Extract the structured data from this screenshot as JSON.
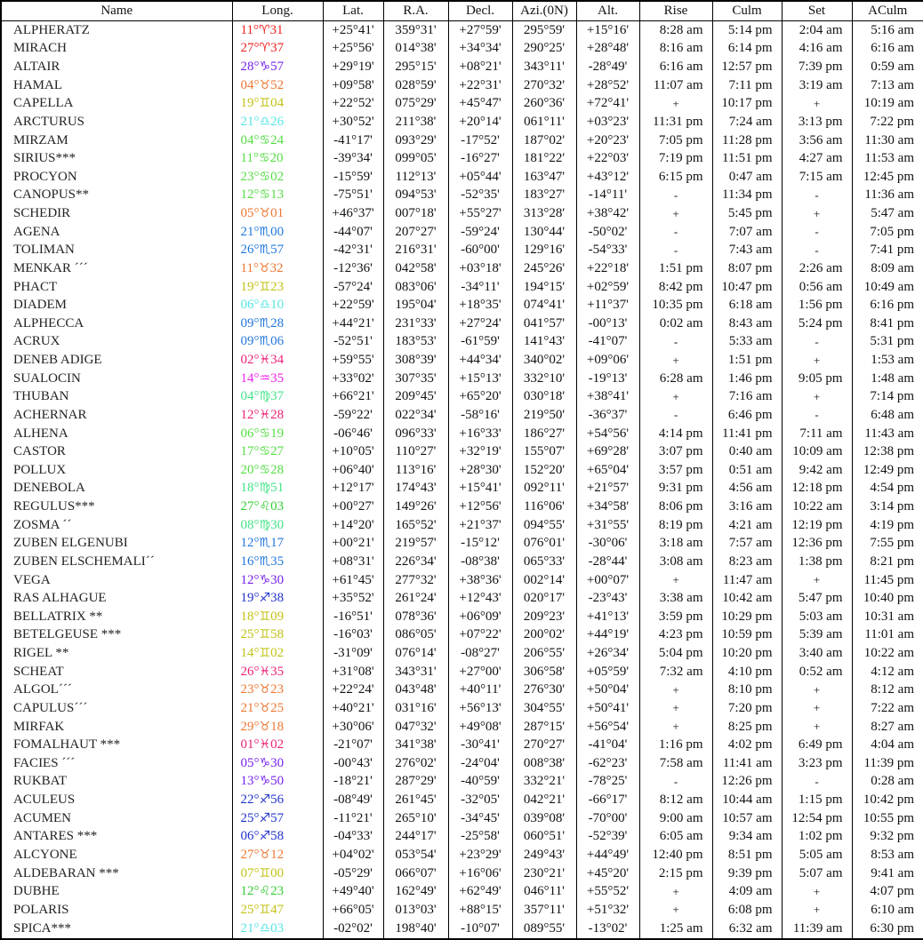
{
  "table": {
    "columns": [
      {
        "key": "name",
        "label": "Name"
      },
      {
        "key": "long",
        "label": "Long."
      },
      {
        "key": "lat",
        "label": "Lat."
      },
      {
        "key": "ra",
        "label": "R.A."
      },
      {
        "key": "decl",
        "label": "Decl."
      },
      {
        "key": "azi",
        "label": "Azi.(0N)"
      },
      {
        "key": "alt",
        "label": "Alt."
      },
      {
        "key": "rise",
        "label": "Rise"
      },
      {
        "key": "culm",
        "label": "Culm"
      },
      {
        "key": "set",
        "label": "Set"
      },
      {
        "key": "aculm",
        "label": "ACulm"
      }
    ],
    "circumpolar_above_mark": "+",
    "circumpolar_below_mark": "-",
    "rows": [
      {
        "name": "ALPHERATZ",
        "long": "11°♈31",
        "lat": "+25°41'",
        "ra": "359°31'",
        "decl": "+27°59'",
        "azi": "295°59'",
        "alt": "+15°16'",
        "rise": "8:28 am",
        "culm": "5:14 pm",
        "set": "2:04 am",
        "aculm": "5:16 am"
      },
      {
        "name": "MIRACH",
        "long": "27°♈37",
        "lat": "+25°56'",
        "ra": "014°38'",
        "decl": "+34°34'",
        "azi": "290°25'",
        "alt": "+28°48'",
        "rise": "8:16 am",
        "culm": "6:14 pm",
        "set": "4:16 am",
        "aculm": "6:16 am"
      },
      {
        "name": "ALTAIR",
        "long": "28°♑57",
        "lat": "+29°19'",
        "ra": "295°15'",
        "decl": "+08°21'",
        "azi": "343°11'",
        "alt": "-28°49'",
        "rise": "6:16 am",
        "culm": "12:57 pm",
        "set": "7:39 pm",
        "aculm": "0:59 am"
      },
      {
        "name": "HAMAL",
        "long": "04°♉52",
        "lat": "+09°58'",
        "ra": "028°59'",
        "decl": "+22°31'",
        "azi": "270°32'",
        "alt": "+28°52'",
        "rise": "11:07 am",
        "culm": "7:11 pm",
        "set": "3:19 am",
        "aculm": "7:13 am"
      },
      {
        "name": "CAPELLA",
        "long": "19°♊04",
        "lat": "+22°52'",
        "ra": "075°29'",
        "decl": "+45°47'",
        "azi": "260°36'",
        "alt": "+72°41'",
        "rise": "+",
        "culm": "10:17 pm",
        "set": "+",
        "aculm": "10:19 am"
      },
      {
        "name": "ARCTURUS",
        "long": "21°♎26",
        "lat": "+30°52'",
        "ra": "211°38'",
        "decl": "+20°14'",
        "azi": "061°11'",
        "alt": "+03°23'",
        "rise": "11:31 pm",
        "culm": "7:24 am",
        "set": "3:13 pm",
        "aculm": "7:22 pm"
      },
      {
        "name": "MIRZAM",
        "long": "04°♋24",
        "lat": "-41°17'",
        "ra": "093°29'",
        "decl": "-17°52'",
        "azi": "187°02'",
        "alt": "+20°23'",
        "rise": "7:05 pm",
        "culm": "11:28 pm",
        "set": "3:56 am",
        "aculm": "11:30 am"
      },
      {
        "name": "SIRIUS***",
        "long": "11°♋20",
        "lat": "-39°34'",
        "ra": "099°05'",
        "decl": "-16°27'",
        "azi": "181°22'",
        "alt": "+22°03'",
        "rise": "7:19 pm",
        "culm": "11:51 pm",
        "set": "4:27 am",
        "aculm": "11:53 am"
      },
      {
        "name": "PROCYON",
        "long": "23°♋02",
        "lat": "-15°59'",
        "ra": "112°13'",
        "decl": "+05°44'",
        "azi": "163°47'",
        "alt": "+43°12'",
        "rise": "6:15 pm",
        "culm": "0:47 am",
        "set": "7:15 am",
        "aculm": "12:45 pm"
      },
      {
        "name": "CANOPUS**",
        "long": "12°♋13",
        "lat": "-75°51'",
        "ra": "094°53'",
        "decl": "-52°35'",
        "azi": "183°27'",
        "alt": "-14°11'",
        "rise": "-",
        "culm": "11:34 pm",
        "set": "-",
        "aculm": "11:36 am"
      },
      {
        "name": "SCHEDIR",
        "long": "05°♉01",
        "lat": "+46°37'",
        "ra": "007°18'",
        "decl": "+55°27'",
        "azi": "313°28'",
        "alt": "+38°42'",
        "rise": "+",
        "culm": "5:45 pm",
        "set": "+",
        "aculm": "5:47 am"
      },
      {
        "name": "AGENA",
        "long": "21°♏00",
        "lat": "-44°07'",
        "ra": "207°27'",
        "decl": "-59°24'",
        "azi": "130°44'",
        "alt": "-50°02'",
        "rise": "-",
        "culm": "7:07 am",
        "set": "-",
        "aculm": "7:05 pm"
      },
      {
        "name": "TOLIMAN",
        "long": "26°♏57",
        "lat": "-42°31'",
        "ra": "216°31'",
        "decl": "-60°00'",
        "azi": "129°16'",
        "alt": "-54°33'",
        "rise": "-",
        "culm": "7:43 am",
        "set": "-",
        "aculm": "7:41 pm"
      },
      {
        "name": "MENKAR ´´´",
        "long": "11°♉32",
        "lat": "-12°36'",
        "ra": "042°58'",
        "decl": "+03°18'",
        "azi": "245°26'",
        "alt": "+22°18'",
        "rise": "1:51 pm",
        "culm": "8:07 pm",
        "set": "2:26 am",
        "aculm": "8:09 am"
      },
      {
        "name": "PHACT",
        "long": "19°♊23",
        "lat": "-57°24'",
        "ra": "083°06'",
        "decl": "-34°11'",
        "azi": "194°15'",
        "alt": "+02°59'",
        "rise": "8:42 pm",
        "culm": "10:47 pm",
        "set": "0:56 am",
        "aculm": "10:49 am"
      },
      {
        "name": "DIADEM",
        "long": "06°♎10",
        "lat": "+22°59'",
        "ra": "195°04'",
        "decl": "+18°35'",
        "azi": "074°41'",
        "alt": "+11°37'",
        "rise": "10:35 pm",
        "culm": "6:18 am",
        "set": "1:56 pm",
        "aculm": "6:16 pm"
      },
      {
        "name": "ALPHECCA",
        "long": "09°♏28",
        "lat": "+44°21'",
        "ra": "231°33'",
        "decl": "+27°24'",
        "azi": "041°57'",
        "alt": "-00°13'",
        "rise": "0:02 am",
        "culm": "8:43 am",
        "set": "5:24 pm",
        "aculm": "8:41 pm"
      },
      {
        "name": "ACRUX",
        "long": "09°♏06",
        "lat": "-52°51'",
        "ra": "183°53'",
        "decl": "-61°59'",
        "azi": "141°43'",
        "alt": "-41°07'",
        "rise": "-",
        "culm": "5:33 am",
        "set": "-",
        "aculm": "5:31 pm"
      },
      {
        "name": "DENEB ADIGE",
        "long": "02°♓34",
        "lat": "+59°55'",
        "ra": "308°39'",
        "decl": "+44°34'",
        "azi": "340°02'",
        "alt": "+09°06'",
        "rise": "+",
        "culm": "1:51 pm",
        "set": "+",
        "aculm": "1:53 am"
      },
      {
        "name": "SUALOCIN",
        "long": "14°♒35",
        "lat": "+33°02'",
        "ra": "307°35'",
        "decl": "+15°13'",
        "azi": "332°10'",
        "alt": "-19°13'",
        "rise": "6:28 am",
        "culm": "1:46 pm",
        "set": "9:05 pm",
        "aculm": "1:48 am"
      },
      {
        "name": "THUBAN",
        "long": "04°♍37",
        "lat": "+66°21'",
        "ra": "209°45'",
        "decl": "+65°20'",
        "azi": "030°18'",
        "alt": "+38°41'",
        "rise": "+",
        "culm": "7:16 am",
        "set": "+",
        "aculm": "7:14 pm"
      },
      {
        "name": "ACHERNAR",
        "long": "12°♓28",
        "lat": "-59°22'",
        "ra": "022°34'",
        "decl": "-58°16'",
        "azi": "219°50'",
        "alt": "-36°37'",
        "rise": "-",
        "culm": "6:46 pm",
        "set": "-",
        "aculm": "6:48 am"
      },
      {
        "name": "ALHENA",
        "long": "06°♋19",
        "lat": "-06°46'",
        "ra": "096°33'",
        "decl": "+16°33'",
        "azi": "186°27'",
        "alt": "+54°56'",
        "rise": "4:14 pm",
        "culm": "11:41 pm",
        "set": "7:11 am",
        "aculm": "11:43 am"
      },
      {
        "name": "CASTOR",
        "long": "17°♋27",
        "lat": "+10°05'",
        "ra": "110°27'",
        "decl": "+32°19'",
        "azi": "155°07'",
        "alt": "+69°28'",
        "rise": "3:07 pm",
        "culm": "0:40 am",
        "set": "10:09 am",
        "aculm": "12:38 pm"
      },
      {
        "name": "POLLUX",
        "long": "20°♋28",
        "lat": "+06°40'",
        "ra": "113°16'",
        "decl": "+28°30'",
        "azi": "152°20'",
        "alt": "+65°04'",
        "rise": "3:57 pm",
        "culm": "0:51 am",
        "set": "9:42 am",
        "aculm": "12:49 pm"
      },
      {
        "name": "DENEBOLA",
        "long": "18°♍51",
        "lat": "+12°17'",
        "ra": "174°43'",
        "decl": "+15°41'",
        "azi": "092°11'",
        "alt": "+21°57'",
        "rise": "9:31 pm",
        "culm": "4:56 am",
        "set": "12:18 pm",
        "aculm": "4:54 pm"
      },
      {
        "name": "REGULUS***",
        "long": "27°♌03",
        "lat": "+00°27'",
        "ra": "149°26'",
        "decl": "+12°56'",
        "azi": "116°06'",
        "alt": "+34°58'",
        "rise": "8:06 pm",
        "culm": "3:16 am",
        "set": "10:22 am",
        "aculm": "3:14 pm"
      },
      {
        "name": "ZOSMA ´´",
        "long": "08°♍30",
        "lat": "+14°20'",
        "ra": "165°52'",
        "decl": "+21°37'",
        "azi": "094°55'",
        "alt": "+31°55'",
        "rise": "8:19 pm",
        "culm": "4:21 am",
        "set": "12:19 pm",
        "aculm": "4:19 pm"
      },
      {
        "name": "ZUBEN ELGENUBI",
        "long": "12°♏17",
        "lat": "+00°21'",
        "ra": "219°57'",
        "decl": "-15°12'",
        "azi": "076°01'",
        "alt": "-30°06'",
        "rise": "3:18 am",
        "culm": "7:57 am",
        "set": "12:36 pm",
        "aculm": "7:55 pm"
      },
      {
        "name": "ZUBEN ELSCHEMALI´´",
        "long": "16°♏35",
        "lat": "+08°31'",
        "ra": "226°34'",
        "decl": "-08°38'",
        "azi": "065°33'",
        "alt": "-28°44'",
        "rise": "3:08 am",
        "culm": "8:23 am",
        "set": "1:38 pm",
        "aculm": "8:21 pm"
      },
      {
        "name": "VEGA",
        "long": "12°♑30",
        "lat": "+61°45'",
        "ra": "277°32'",
        "decl": "+38°36'",
        "azi": "002°14'",
        "alt": "+00°07'",
        "rise": "+",
        "culm": "11:47 am",
        "set": "+",
        "aculm": "11:45 pm"
      },
      {
        "name": "RAS ALHAGUE",
        "long": "19°♐38",
        "lat": "+35°52'",
        "ra": "261°24'",
        "decl": "+12°43'",
        "azi": "020°17'",
        "alt": "-23°43'",
        "rise": "3:38 am",
        "culm": "10:42 am",
        "set": "5:47 pm",
        "aculm": "10:40 pm"
      },
      {
        "name": "BELLATRIX **",
        "long": "18°♊09",
        "lat": "-16°51'",
        "ra": "078°36'",
        "decl": "+06°09'",
        "azi": "209°23'",
        "alt": "+41°13'",
        "rise": "3:59 pm",
        "culm": "10:29 pm",
        "set": "5:03 am",
        "aculm": "10:31 am"
      },
      {
        "name": "BETELGEUSE ***",
        "long": "25°♊58",
        "lat": "-16°03'",
        "ra": "086°05'",
        "decl": "+07°22'",
        "azi": "200°02'",
        "alt": "+44°19'",
        "rise": "4:23 pm",
        "culm": "10:59 pm",
        "set": "5:39 am",
        "aculm": "11:01 am"
      },
      {
        "name": "RIGEL **",
        "long": "14°♊02",
        "lat": "-31°09'",
        "ra": "076°14'",
        "decl": "-08°27'",
        "azi": "206°55'",
        "alt": "+26°34'",
        "rise": "5:04 pm",
        "culm": "10:20 pm",
        "set": "3:40 am",
        "aculm": "10:22 am"
      },
      {
        "name": "SCHEAT",
        "long": "26°♓35",
        "lat": "+31°08'",
        "ra": "343°31'",
        "decl": "+27°00'",
        "azi": "306°58'",
        "alt": "+05°59'",
        "rise": "7:32 am",
        "culm": "4:10 pm",
        "set": "0:52 am",
        "aculm": "4:12 am"
      },
      {
        "name": "ALGOL´´´",
        "long": "23°♉23",
        "lat": "+22°24'",
        "ra": "043°48'",
        "decl": "+40°11'",
        "azi": "276°30'",
        "alt": "+50°04'",
        "rise": "+",
        "culm": "8:10 pm",
        "set": "+",
        "aculm": "8:12 am"
      },
      {
        "name": "CAPULUS´´´",
        "long": "21°♉25",
        "lat": "+40°21'",
        "ra": "031°16'",
        "decl": "+56°13'",
        "azi": "304°55'",
        "alt": "+50°41'",
        "rise": "+",
        "culm": "7:20 pm",
        "set": "+",
        "aculm": "7:22 am"
      },
      {
        "name": "MIRFAK",
        "long": "29°♉18",
        "lat": "+30°06'",
        "ra": "047°32'",
        "decl": "+49°08'",
        "azi": "287°15'",
        "alt": "+56°54'",
        "rise": "+",
        "culm": "8:25 pm",
        "set": "+",
        "aculm": "8:27 am"
      },
      {
        "name": "FOMALHAUT ***",
        "long": "01°♓02",
        "lat": "-21°07'",
        "ra": "341°38'",
        "decl": "-30°41'",
        "azi": "270°27'",
        "alt": "-41°04'",
        "rise": "1:16 pm",
        "culm": "4:02 pm",
        "set": "6:49 pm",
        "aculm": "4:04 am"
      },
      {
        "name": "FACIES ´´´",
        "long": "05°♑30",
        "lat": "-00°43'",
        "ra": "276°02'",
        "decl": "-24°04'",
        "azi": "008°38'",
        "alt": "-62°23'",
        "rise": "7:58 am",
        "culm": "11:41 am",
        "set": "3:23 pm",
        "aculm": "11:39 pm"
      },
      {
        "name": "RUKBAT",
        "long": "13°♑50",
        "lat": "-18°21'",
        "ra": "287°29'",
        "decl": "-40°59'",
        "azi": "332°21'",
        "alt": "-78°25'",
        "rise": "-",
        "culm": "12:26 pm",
        "set": "-",
        "aculm": "0:28 am"
      },
      {
        "name": "ACULEUS",
        "long": "22°♐56",
        "lat": "-08°49'",
        "ra": "261°45'",
        "decl": "-32°05'",
        "azi": "042°21'",
        "alt": "-66°17'",
        "rise": "8:12 am",
        "culm": "10:44 am",
        "set": "1:15 pm",
        "aculm": "10:42 pm"
      },
      {
        "name": "ACUMEN",
        "long": "25°♐57",
        "lat": "-11°21'",
        "ra": "265°10'",
        "decl": "-34°45'",
        "azi": "039°08'",
        "alt": "-70°00'",
        "rise": "9:00 am",
        "culm": "10:57 am",
        "set": "12:54 pm",
        "aculm": "10:55 pm"
      },
      {
        "name": "ANTARES ***",
        "long": "06°♐58",
        "lat": "-04°33'",
        "ra": "244°17'",
        "decl": "-25°58'",
        "azi": "060°51'",
        "alt": "-52°39'",
        "rise": "6:05 am",
        "culm": "9:34 am",
        "set": "1:02 pm",
        "aculm": "9:32 pm"
      },
      {
        "name": "ALCYONE",
        "long": "27°♉12",
        "lat": "+04°02'",
        "ra": "053°54'",
        "decl": "+23°29'",
        "azi": "249°43'",
        "alt": "+44°49'",
        "rise": "12:40 pm",
        "culm": "8:51 pm",
        "set": "5:05 am",
        "aculm": "8:53 am"
      },
      {
        "name": "ALDEBARAN ***",
        "long": "07°♊00",
        "lat": "-05°29'",
        "ra": "066°07'",
        "decl": "+16°06'",
        "azi": "230°21'",
        "alt": "+45°20'",
        "rise": "2:15 pm",
        "culm": "9:39 pm",
        "set": "5:07 am",
        "aculm": "9:41 am"
      },
      {
        "name": "DUBHE",
        "long": "12°♌23",
        "lat": "+49°40'",
        "ra": "162°49'",
        "decl": "+62°49'",
        "azi": "046°11'",
        "alt": "+55°52'",
        "rise": "+",
        "culm": "4:09 am",
        "set": "+",
        "aculm": "4:07 pm"
      },
      {
        "name": "POLARIS",
        "long": "25°♊47",
        "lat": "+66°05'",
        "ra": "013°03'",
        "decl": "+88°15'",
        "azi": "357°11'",
        "alt": "+51°32'",
        "rise": "+",
        "culm": "6:08 pm",
        "set": "+",
        "aculm": "6:10 am"
      },
      {
        "name": "SPICA***",
        "long": "21°♎03",
        "lat": "-02°02'",
        "ra": "198°40'",
        "decl": "-10°07'",
        "azi": "089°55'",
        "alt": "-13°02'",
        "rise": "1:25 am",
        "culm": "6:32 am",
        "set": "11:39 am",
        "aculm": "6:30 pm"
      }
    ]
  },
  "zodiac_colors": {
    "♈": "#ee2222",
    "♉": "#ee7733",
    "♊": "#c2c216",
    "♋": "#55dd44",
    "♌": "#33cc33",
    "♍": "#44e388",
    "♎": "#55e5e5",
    "♏": "#2277dd",
    "♐": "#2233cc",
    "♑": "#7722ee",
    "♒": "#ee22ee",
    "♓": "#ee2277"
  }
}
